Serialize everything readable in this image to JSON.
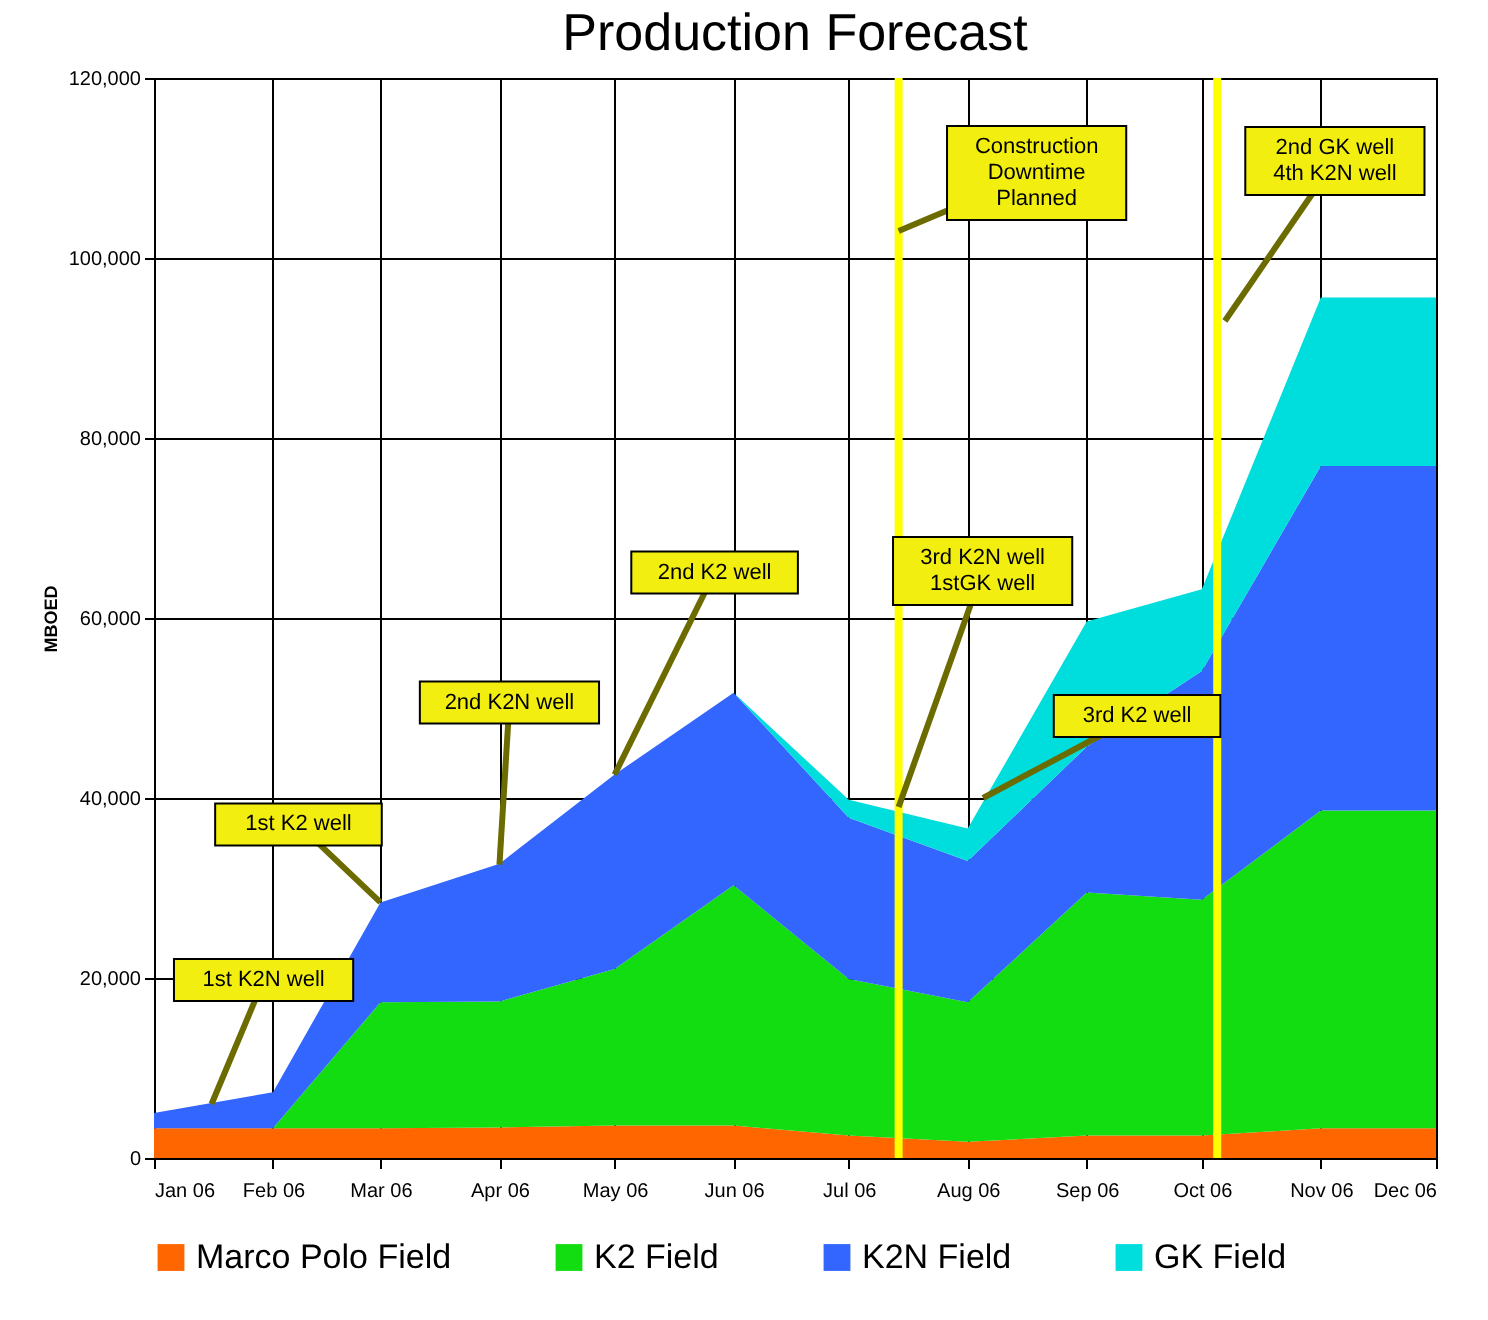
{
  "chart_data": {
    "type": "area",
    "title": "Production Forecast",
    "ylabel": "MBOED",
    "stacked": true,
    "x": [
      "2006-01",
      "2006-02",
      "2006-03",
      "2006-04",
      "2006-05",
      "2006-06",
      "2006-07",
      "2006-08",
      "2006-09",
      "2006-10",
      "2006-11",
      "2006-12"
    ],
    "series": [
      {
        "name": "Marco Polo Field",
        "color": "#ff6600",
        "values": [
          3300,
          3300,
          3300,
          3400,
          3600,
          3600,
          2500,
          1800,
          2500,
          2500,
          3300,
          3300
        ]
      },
      {
        "name": "K2 Field",
        "color": "#11dd11",
        "values": [
          0,
          0,
          14000,
          14000,
          17400,
          26700,
          17400,
          15500,
          27000,
          26200,
          35300,
          35300
        ]
      },
      {
        "name": "K2N Field",
        "color": "#3366ff",
        "values": [
          1700,
          4000,
          11100,
          15300,
          21600,
          21400,
          17900,
          15700,
          16200,
          25400,
          38300,
          38300
        ]
      },
      {
        "name": "GK Field",
        "color": "#00dddd",
        "values": [
          0,
          0,
          0,
          0,
          0,
          0,
          2000,
          3600,
          13900,
          9100,
          18700,
          18700
        ]
      }
    ],
    "xlim": [
      "2006-01",
      "2006-12"
    ],
    "xticks": [
      {
        "value": "2006-01",
        "label": "Jan 06"
      },
      {
        "value": "2006-02",
        "label": "Feb 06"
      },
      {
        "value": "2006-03",
        "label": "Mar 06"
      },
      {
        "value": "2006-04",
        "label": "Apr 06"
      },
      {
        "value": "2006-05",
        "label": "May 06"
      },
      {
        "value": "2006-06",
        "label": "Jun 06"
      },
      {
        "value": "2006-07",
        "label": "Jul 06"
      },
      {
        "value": "2006-08",
        "label": "Aug 06"
      },
      {
        "value": "2006-09",
        "label": "Sep 06"
      },
      {
        "value": "2006-10",
        "label": "Oct 06"
      },
      {
        "value": "2006-11",
        "label": "Nov 06"
      },
      {
        "value": "2006-12",
        "label": "Dec 06"
      }
    ],
    "ylim": [
      0,
      120000
    ],
    "yticks": [
      {
        "value": 0,
        "label": "0"
      },
      {
        "value": 20000,
        "label": "20,000"
      },
      {
        "value": 40000,
        "label": "40,000"
      },
      {
        "value": 60000,
        "label": "60,000"
      },
      {
        "value": 80000,
        "label": "80,000"
      },
      {
        "value": 100000,
        "label": "100,000"
      },
      {
        "value": 120000,
        "label": "120,000"
      }
    ],
    "grid": true,
    "legend": "bottom",
    "ref_lines": [
      {
        "axis": "x",
        "value": "2006-07-14",
        "color": "#ffff00"
      },
      {
        "axis": "x",
        "value": "2006-10-05",
        "color": "#ffff00"
      }
    ],
    "annotations": [
      {
        "text": "1st K2N well",
        "x": "2006-01-16",
        "y": 6000
      },
      {
        "text": "1st K2 well",
        "x": "2006-03",
        "y": 28400
      },
      {
        "text": "2nd K2N well",
        "x": "2006-04",
        "y": 32600
      },
      {
        "text": "2nd K2 well",
        "x": "2006-05",
        "y": 42600
      },
      {
        "text": "Construction\nDowntime\nPlanned",
        "x": "2006-07-14",
        "y": 103000
      },
      {
        "text": "3rd K2N well\n1stGK well",
        "x": "2006-07-14",
        "y": 39000
      },
      {
        "text": "3rd K2 well",
        "x": "2006-08-05",
        "y": 40000
      },
      {
        "text": "2nd GK well\n4th K2N well",
        "x": "2006-10-07",
        "y": 93000
      }
    ]
  }
}
